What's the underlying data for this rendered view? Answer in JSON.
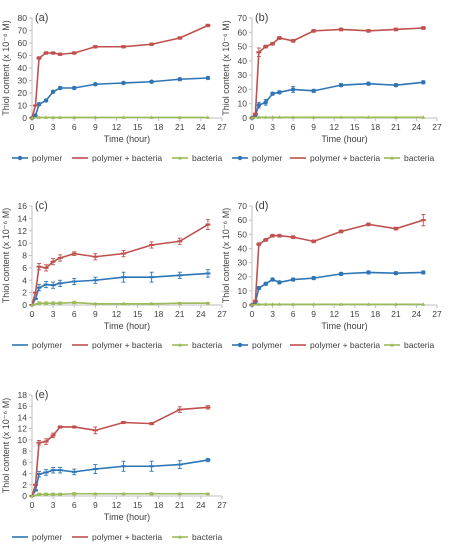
{
  "colors": {
    "polymer": "#2e75b6",
    "polymer_bacteria": "#c0504d",
    "bacteria": "#9bbb59",
    "axis": "#bfbfbf",
    "text": "#404040"
  },
  "chart_data": [
    {
      "panel_label": "(a)",
      "type": "line",
      "xlabel": "Time (hour)",
      "ylabel": "Thiol content (x 10⁻⁶ M)",
      "xlim": [
        0,
        27
      ],
      "ylim": [
        0,
        80
      ],
      "xticks": [
        0,
        3,
        6,
        9,
        12,
        15,
        18,
        21,
        24,
        27
      ],
      "yticks": [
        0,
        10,
        20,
        30,
        40,
        50,
        60,
        70,
        80
      ],
      "grid": false,
      "legend_position": "bottom",
      "series": [
        {
          "name": "polymer",
          "color": "#2e75b6",
          "marker": "circle",
          "x": [
            0,
            0.5,
            1,
            2,
            3,
            4,
            6,
            9,
            13,
            17,
            21,
            25
          ],
          "y": [
            0,
            2,
            11,
            14,
            21,
            24,
            24,
            27,
            28,
            29,
            31,
            32
          ],
          "err": [
            0,
            0,
            1,
            1,
            1,
            1,
            1,
            1,
            1,
            1,
            1,
            1
          ]
        },
        {
          "name": "polymer + bacteria",
          "color": "#c0504d",
          "marker": "dash",
          "x": [
            0,
            0.5,
            1,
            2,
            3,
            4,
            6,
            9,
            13,
            17,
            21,
            25
          ],
          "y": [
            0,
            10,
            48,
            52,
            52,
            51,
            52,
            57,
            57,
            59,
            64,
            74
          ],
          "err": [
            0,
            0,
            1,
            1,
            1,
            1,
            1,
            1,
            1,
            1,
            1,
            1
          ]
        },
        {
          "name": "bacteria",
          "color": "#9bbb59",
          "marker": "triangle",
          "x": [
            0,
            1,
            2,
            3,
            4,
            6,
            9,
            13,
            17,
            21,
            25
          ],
          "y": [
            0,
            0.5,
            0.5,
            0.5,
            0.5,
            0.5,
            0.5,
            0.5,
            0.5,
            0.5,
            0.5
          ],
          "err": [
            0,
            0,
            0,
            0,
            0,
            0,
            0,
            0,
            0,
            0,
            0
          ]
        }
      ]
    },
    {
      "panel_label": "(b)",
      "type": "line",
      "xlabel": "Time (hour)",
      "ylabel": "Thiol content (x 10⁻⁶ M)",
      "xlim": [
        0,
        27
      ],
      "ylim": [
        0,
        70
      ],
      "xticks": [
        0,
        3,
        6,
        9,
        12,
        15,
        18,
        21,
        24,
        27
      ],
      "yticks": [
        0,
        10,
        20,
        30,
        40,
        50,
        60,
        70
      ],
      "grid": false,
      "legend_position": "bottom",
      "series": [
        {
          "name": "polymer",
          "color": "#2e75b6",
          "marker": "circle",
          "x": [
            0,
            0.5,
            1,
            2,
            3,
            4,
            6,
            9,
            13,
            17,
            21,
            25
          ],
          "y": [
            0,
            2,
            9,
            11,
            17,
            18,
            20,
            19,
            23,
            24,
            23,
            25
          ],
          "err": [
            0,
            0,
            2,
            2,
            1,
            1,
            2,
            1,
            1,
            1,
            1,
            1
          ]
        },
        {
          "name": "polymer + bacteria",
          "color": "#c0504d",
          "marker": "dash",
          "x": [
            0,
            0.5,
            1,
            2,
            3,
            4,
            6,
            9,
            13,
            17,
            21,
            25
          ],
          "y": [
            0,
            3,
            46,
            50,
            52,
            56,
            54,
            61,
            62,
            61,
            62,
            63
          ],
          "err": [
            0,
            0,
            3,
            1,
            1,
            1,
            1,
            1,
            1,
            1,
            1,
            1
          ]
        },
        {
          "name": "bacteria",
          "color": "#9bbb59",
          "marker": "triangle",
          "x": [
            0,
            1,
            2,
            3,
            4,
            6,
            9,
            13,
            17,
            21,
            25
          ],
          "y": [
            0,
            0.5,
            0.5,
            0.5,
            0.5,
            0.5,
            0.5,
            0.5,
            0.5,
            0.5,
            0.5
          ],
          "err": [
            0,
            0,
            0,
            0,
            0,
            0,
            0,
            0,
            0,
            0,
            0
          ]
        }
      ]
    },
    {
      "panel_label": "(c)",
      "type": "line",
      "xlabel": "Time (hour)",
      "ylabel": "Thiol content (x 10⁻⁶ M)",
      "xlim": [
        0,
        27
      ],
      "ylim": [
        0,
        16
      ],
      "xticks": [
        0,
        3,
        6,
        9,
        12,
        15,
        18,
        21,
        24,
        27
      ],
      "yticks": [
        0,
        2,
        4,
        6,
        8,
        10,
        12,
        14,
        16
      ],
      "grid": false,
      "legend_position": "bottom",
      "series": [
        {
          "name": "polymer",
          "color": "#2e75b6",
          "marker": "dash",
          "x": [
            0,
            0.5,
            1,
            2,
            3,
            4,
            6,
            9,
            13,
            17,
            21,
            25
          ],
          "y": [
            0,
            1,
            2.8,
            3.3,
            3.2,
            3.5,
            3.8,
            4.0,
            4.5,
            4.5,
            4.8,
            5.1
          ],
          "err": [
            0,
            0,
            0.5,
            0.5,
            0.5,
            0.5,
            0.5,
            0.5,
            0.8,
            0.8,
            0.5,
            0.6
          ]
        },
        {
          "name": "polymer + bacteria",
          "color": "#c0504d",
          "marker": "dash",
          "x": [
            0,
            0.5,
            1,
            2,
            3,
            4,
            6,
            9,
            13,
            17,
            21,
            25
          ],
          "y": [
            0,
            2,
            6.2,
            6.0,
            7.0,
            7.6,
            8.3,
            7.8,
            8.3,
            9.7,
            10.3,
            13.0
          ],
          "err": [
            0,
            0,
            0.5,
            0.5,
            0.5,
            0.5,
            0.3,
            0.5,
            0.5,
            0.5,
            0.5,
            0.8
          ]
        },
        {
          "name": "bacteria",
          "color": "#9bbb59",
          "marker": "triangle",
          "x": [
            0,
            1,
            2,
            3,
            4,
            6,
            9,
            13,
            17,
            21,
            25
          ],
          "y": [
            0,
            0.3,
            0.3,
            0.3,
            0.3,
            0.4,
            0.2,
            0.2,
            0.2,
            0.3,
            0.3
          ],
          "err": [
            0,
            0.2,
            0.2,
            0.2,
            0.2,
            0.2,
            0.1,
            0.1,
            0.1,
            0.1,
            0.1
          ]
        }
      ]
    },
    {
      "panel_label": "(d)",
      "type": "line",
      "xlabel": "Time (hour)",
      "ylabel": "Thiol content (x 10⁻⁶ M)",
      "xlim": [
        0,
        27
      ],
      "ylim": [
        0,
        70
      ],
      "xticks": [
        0,
        3,
        6,
        9,
        12,
        15,
        18,
        21,
        24,
        27
      ],
      "yticks": [
        0,
        10,
        20,
        30,
        40,
        50,
        60,
        70
      ],
      "grid": false,
      "legend_position": "bottom",
      "series": [
        {
          "name": "polymer",
          "color": "#2e75b6",
          "marker": "circle",
          "x": [
            0,
            0.5,
            1,
            2,
            3,
            4,
            6,
            9,
            13,
            17,
            21,
            25
          ],
          "y": [
            0,
            2,
            12,
            15,
            18,
            16,
            18,
            19,
            22,
            23,
            22.5,
            23
          ],
          "err": [
            0,
            0,
            1,
            1,
            1,
            1,
            1,
            1,
            1,
            1,
            1,
            1
          ]
        },
        {
          "name": "polymer + bacteria",
          "color": "#c0504d",
          "marker": "dash",
          "x": [
            0,
            0.5,
            1,
            2,
            3,
            4,
            6,
            9,
            13,
            17,
            21,
            25
          ],
          "y": [
            0,
            3,
            43,
            46,
            49,
            49,
            48,
            45,
            52,
            57,
            54,
            60
          ],
          "err": [
            0,
            0,
            1,
            1,
            1,
            1,
            1,
            1,
            1,
            1,
            1,
            4
          ]
        },
        {
          "name": "bacteria",
          "color": "#9bbb59",
          "marker": "triangle",
          "x": [
            0,
            1,
            2,
            3,
            4,
            6,
            9,
            13,
            17,
            21,
            25
          ],
          "y": [
            0,
            0.5,
            0.5,
            0.5,
            0.5,
            0.5,
            0.5,
            0.5,
            0.5,
            0.5,
            0.5
          ],
          "err": [
            0,
            0,
            0,
            0,
            0,
            0,
            0,
            0,
            0,
            0,
            0
          ]
        }
      ]
    },
    {
      "panel_label": "(e)",
      "type": "line",
      "xlabel": "Time (hour)",
      "ylabel": "Thiol content (x 10⁻⁶ M)",
      "xlim": [
        0,
        27
      ],
      "ylim": [
        0,
        18
      ],
      "xticks": [
        0,
        3,
        6,
        9,
        12,
        15,
        18,
        21,
        24,
        27
      ],
      "yticks": [
        0,
        2,
        4,
        6,
        8,
        10,
        12,
        14,
        16,
        18
      ],
      "grid": false,
      "legend_position": "bottom",
      "series": [
        {
          "name": "polymer",
          "color": "#2e75b6",
          "marker": "dash",
          "x": [
            0,
            0.5,
            1,
            2,
            3,
            4,
            6,
            9,
            13,
            17,
            21,
            25
          ],
          "y": [
            0,
            1,
            3.9,
            4.2,
            4.6,
            4.6,
            4.3,
            4.8,
            5.3,
            5.3,
            5.6,
            6.4
          ],
          "err": [
            0,
            0,
            0.5,
            0.5,
            0.5,
            0.5,
            0.5,
            0.8,
            0.9,
            0.9,
            0.7,
            0.3
          ]
        },
        {
          "name": "polymer + bacteria",
          "color": "#c0504d",
          "marker": "dash",
          "x": [
            0,
            0.5,
            1,
            2,
            3,
            4,
            6,
            9,
            13,
            17,
            21,
            25
          ],
          "y": [
            0,
            2,
            9.5,
            9.7,
            10.8,
            12.3,
            12.3,
            11.7,
            13.1,
            12.9,
            15.4,
            15.8
          ],
          "err": [
            0,
            0,
            0.4,
            0.5,
            0.4,
            0.2,
            0.2,
            0.6,
            0.2,
            0.2,
            0.5,
            0.3
          ]
        },
        {
          "name": "bacteria",
          "color": "#9bbb59",
          "marker": "triangle",
          "x": [
            0,
            1,
            2,
            3,
            4,
            6,
            9,
            13,
            17,
            21,
            25
          ],
          "y": [
            0,
            0.3,
            0.3,
            0.3,
            0.3,
            0.4,
            0.4,
            0.4,
            0.4,
            0.4,
            0.4
          ],
          "err": [
            0,
            0.2,
            0.2,
            0.2,
            0.2,
            0.2,
            0.1,
            0.1,
            0.2,
            0.1,
            0.1
          ]
        }
      ]
    }
  ]
}
